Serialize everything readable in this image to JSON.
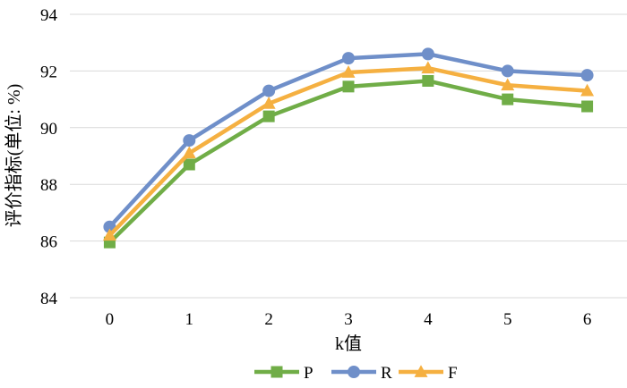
{
  "chart_data": {
    "type": "line",
    "title": "",
    "xlabel": "k值",
    "ylabel": "评价指标(单位: %)",
    "x": [
      0,
      1,
      2,
      3,
      4,
      5,
      6
    ],
    "ylim": [
      84,
      94
    ],
    "yticks": [
      84,
      86,
      88,
      90,
      92,
      94
    ],
    "grid": true,
    "legend": "bottom",
    "series": [
      {
        "name": "P",
        "marker": "square",
        "color": "#70ad47",
        "values": [
          85.95,
          88.7,
          90.4,
          91.45,
          91.65,
          91.0,
          90.75
        ]
      },
      {
        "name": "R",
        "marker": "circle",
        "color": "#6f8fc9",
        "values": [
          86.5,
          89.55,
          91.3,
          92.45,
          92.6,
          92.0,
          91.85
        ]
      },
      {
        "name": "F",
        "marker": "triangle",
        "color": "#f5b041",
        "values": [
          86.2,
          89.1,
          90.85,
          91.95,
          92.1,
          91.5,
          91.3
        ]
      }
    ]
  }
}
